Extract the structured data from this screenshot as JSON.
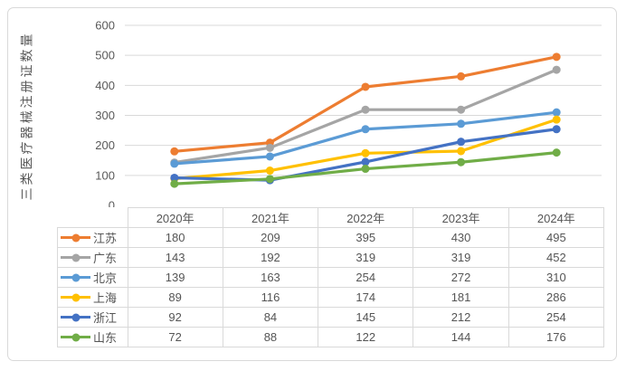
{
  "chart_data": {
    "type": "line",
    "title": "",
    "ylabel": "三类医疗器械注册证数量",
    "xlabel": "",
    "categories": [
      "2020年",
      "2021年",
      "2022年",
      "2023年",
      "2024年"
    ],
    "series": [
      {
        "name": "江苏",
        "color": "#ED7D31",
        "values": [
          180,
          209,
          395,
          430,
          495
        ]
      },
      {
        "name": "广东",
        "color": "#A5A5A5",
        "values": [
          143,
          192,
          319,
          319,
          452
        ]
      },
      {
        "name": "北京",
        "color": "#5B9BD5",
        "values": [
          139,
          163,
          254,
          272,
          310
        ]
      },
      {
        "name": "上海",
        "color": "#FFC000",
        "values": [
          89,
          116,
          174,
          181,
          286
        ]
      },
      {
        "name": "浙江",
        "color": "#4472C4",
        "values": [
          92,
          84,
          145,
          212,
          254
        ]
      },
      {
        "name": "山东",
        "color": "#70AD47",
        "values": [
          72,
          88,
          122,
          144,
          176
        ]
      }
    ],
    "y_ticks": [
      0,
      100,
      200,
      300,
      400,
      500,
      600
    ],
    "ylim": [
      0,
      600
    ],
    "grid": true,
    "legend_position": "table-left",
    "marker": "circle"
  },
  "colors": {
    "grid": "#D9D9D9",
    "frame_border": "#D9D9D9",
    "table_border": "#D9D9D9",
    "axis_text": "#595959",
    "table_text": "#555555",
    "background": "#FFFFFF"
  }
}
